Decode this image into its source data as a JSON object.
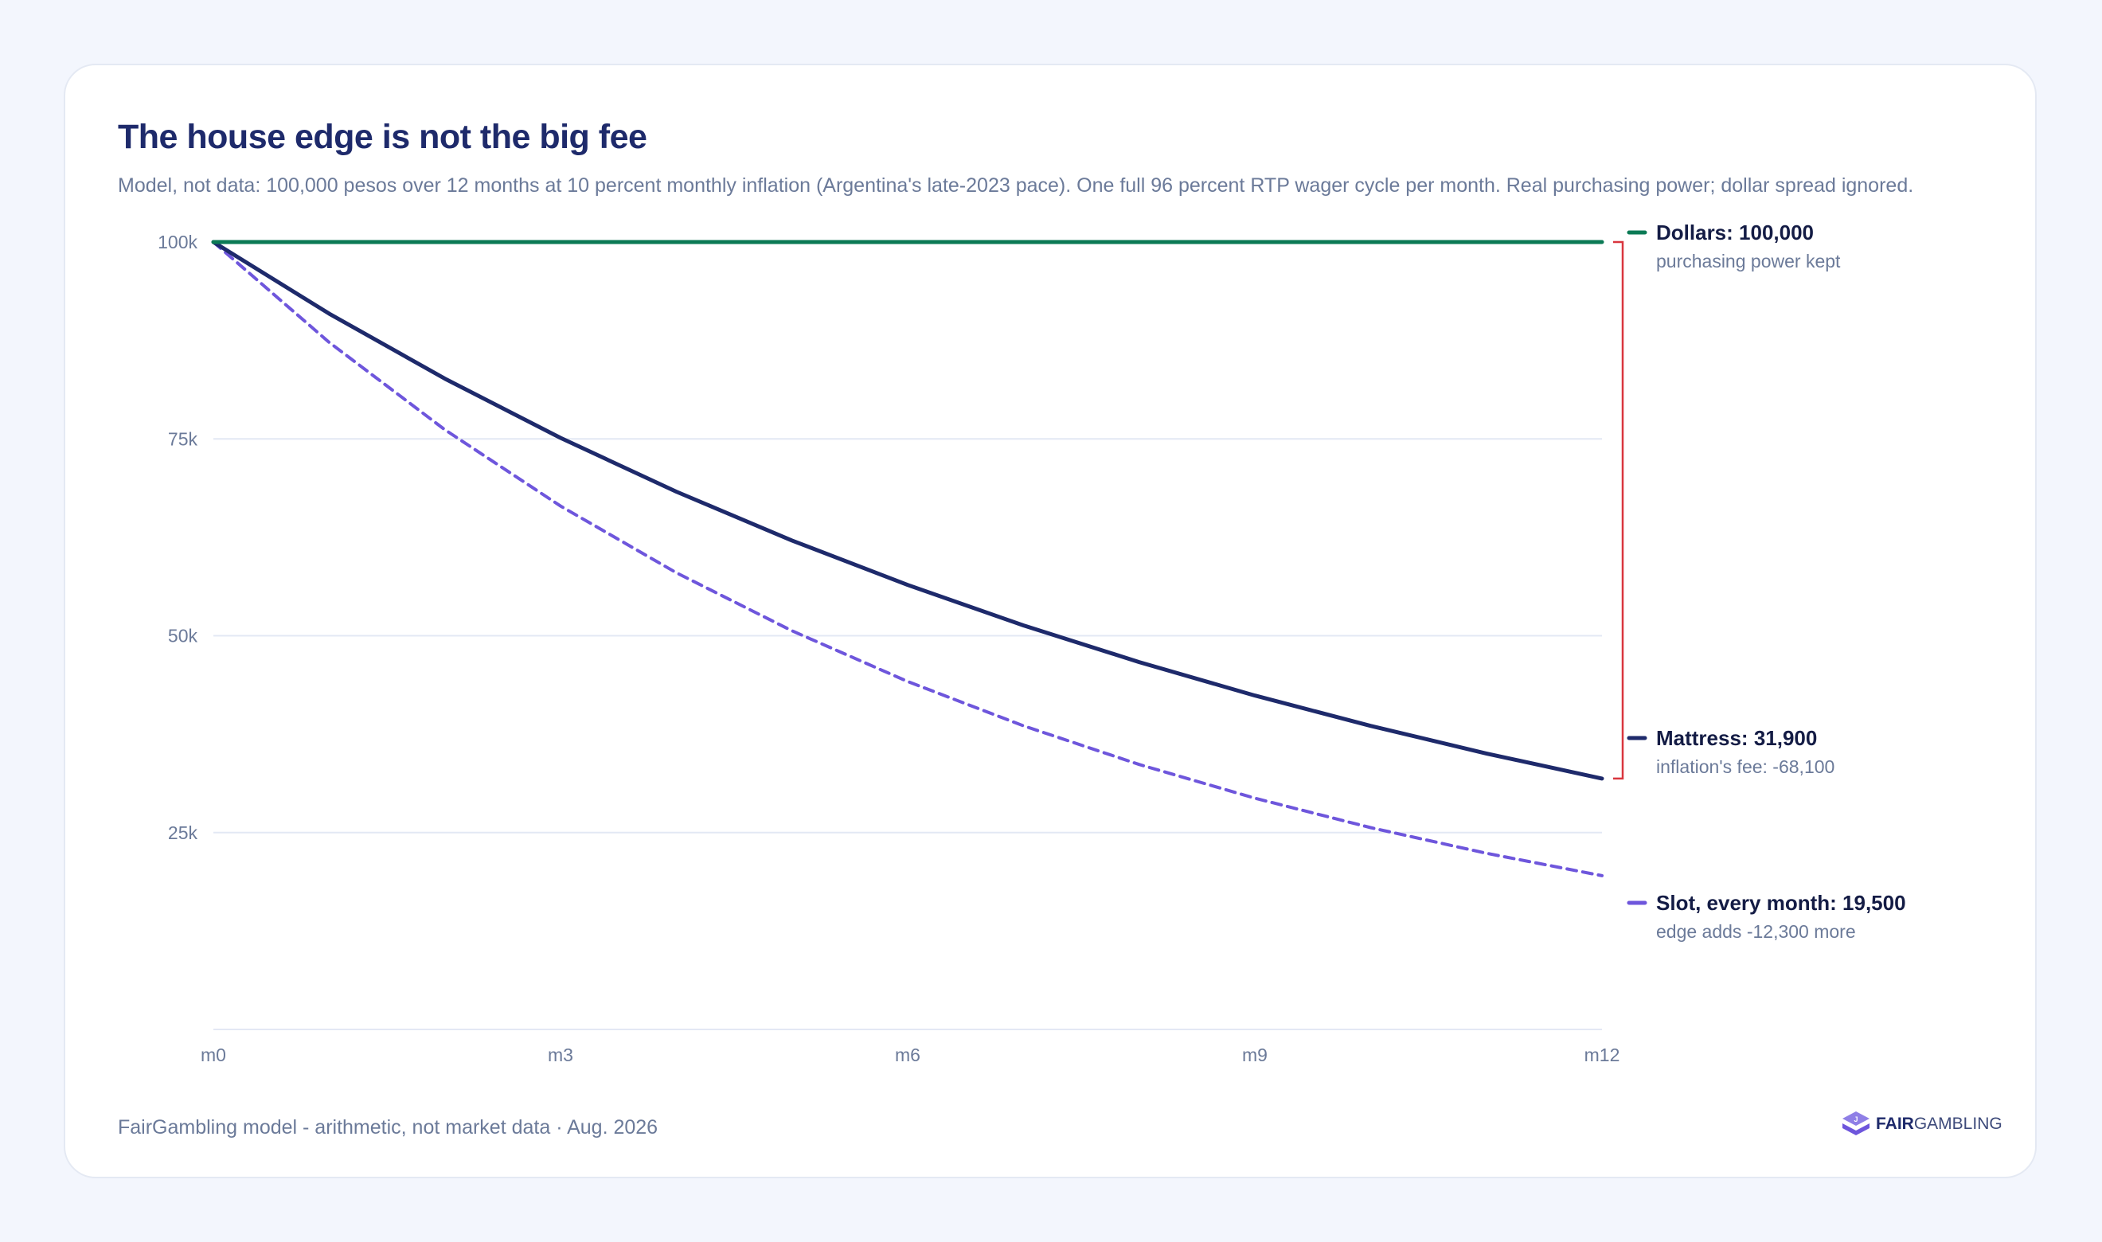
{
  "title": "The house edge is not the big fee",
  "subtitle": "Model, not data: 100,000 pesos over 12 months at 10 percent monthly inflation (Argentina's late-2023 pace). One full 96 percent RTP wager cycle per month. Real purchasing power; dollar spread ignored.",
  "footer": "FairGambling model - arithmetic, not market data · Aug. 2026",
  "brand": {
    "strong": "FAIR",
    "rest": "GAMBLING"
  },
  "colors": {
    "dollars": "#0b7a55",
    "mattress": "#1e2a6b",
    "slot": "#6e56dc",
    "bracket": "#d9363e",
    "grid": "#e3e8f4",
    "tick": "#6b7a99"
  },
  "chart_data": {
    "type": "line",
    "x": [
      "m0",
      "m1",
      "m2",
      "m3",
      "m4",
      "m5",
      "m6",
      "m7",
      "m8",
      "m9",
      "m10",
      "m11",
      "m12"
    ],
    "xticks": [
      "m0",
      "m3",
      "m6",
      "m9",
      "m12"
    ],
    "yticks": [
      {
        "value": 100000,
        "label": "100k"
      },
      {
        "value": 75000,
        "label": "75k"
      },
      {
        "value": 50000,
        "label": "50k"
      },
      {
        "value": 25000,
        "label": "25k"
      }
    ],
    "ylim": [
      0,
      100000
    ],
    "grid": true,
    "series": [
      {
        "key": "dollars",
        "values": [
          100000,
          100000,
          100000,
          100000,
          100000,
          100000,
          100000,
          100000,
          100000,
          100000,
          100000,
          100000,
          100000
        ],
        "style": "solid",
        "label": "Dollars: 100,000",
        "note": "purchasing power kept"
      },
      {
        "key": "mattress",
        "values": [
          100000,
          90909,
          82645,
          75131,
          68301,
          62092,
          56447,
          51316,
          46651,
          42410,
          38554,
          35049,
          31863
        ],
        "style": "solid",
        "label": "Mattress: 31,900",
        "note": "inflation's fee: -68,100"
      },
      {
        "key": "slot",
        "values": [
          100000,
          87273,
          76166,
          66473,
          58013,
          50630,
          44187,
          38563,
          33655,
          29372,
          25634,
          22372,
          19524
        ],
        "style": "dashed",
        "label": "Slot, every month: 19,500",
        "note": "edge adds -12,300 more"
      }
    ]
  }
}
